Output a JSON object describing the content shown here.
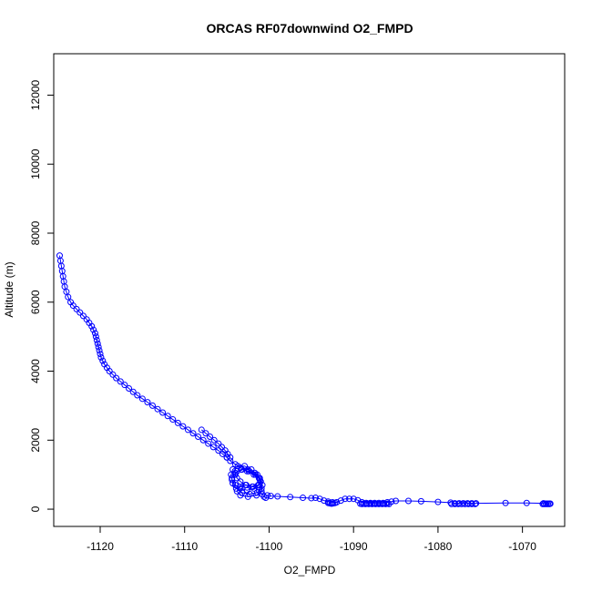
{
  "chart_data": {
    "type": "scatter",
    "title": "ORCAS RF07downwind O2_FMPD",
    "xlabel": "O2_FMPD",
    "ylabel": "Altitude (m)",
    "xlim": [
      -1125.5,
      -1065.0
    ],
    "ylim": [
      -500,
      13200
    ],
    "xticks": [
      -1120,
      -1110,
      -1100,
      -1090,
      -1080,
      -1070
    ],
    "xtick_labels": [
      "-1120",
      "-1110",
      "-1100",
      "-1090",
      "-1080",
      "-1070"
    ],
    "yticks": [
      0,
      2000,
      4000,
      6000,
      8000,
      10000,
      12000
    ],
    "ytick_labels": [
      "0",
      "2000",
      "4000",
      "6000",
      "8000",
      "10000",
      "12000"
    ],
    "grid": false,
    "series_color": "#0000ff",
    "marker": "open-circle",
    "connected_line": true,
    "series": [
      {
        "profile_descent": [
          [
            -1124.8,
            7350
          ],
          [
            -1124.7,
            7200
          ],
          [
            -1124.6,
            7050
          ],
          [
            -1124.5,
            6900
          ],
          [
            -1124.4,
            6750
          ],
          [
            -1124.3,
            6600
          ],
          [
            -1124.2,
            6450
          ],
          [
            -1124.0,
            6300
          ],
          [
            -1123.8,
            6150
          ],
          [
            -1123.5,
            6000
          ],
          [
            -1123.2,
            5900
          ],
          [
            -1122.8,
            5800
          ],
          [
            -1122.4,
            5700
          ],
          [
            -1122.0,
            5600
          ],
          [
            -1121.6,
            5500
          ],
          [
            -1121.3,
            5400
          ],
          [
            -1121.0,
            5300
          ],
          [
            -1120.8,
            5200
          ],
          [
            -1120.6,
            5100
          ],
          [
            -1120.5,
            5000
          ],
          [
            -1120.4,
            4900
          ],
          [
            -1120.3,
            4800
          ],
          [
            -1120.2,
            4700
          ],
          [
            -1120.1,
            4600
          ],
          [
            -1120.0,
            4500
          ],
          [
            -1119.9,
            4400
          ],
          [
            -1119.7,
            4300
          ],
          [
            -1119.5,
            4200
          ],
          [
            -1119.2,
            4100
          ],
          [
            -1118.9,
            4000
          ],
          [
            -1118.5,
            3900
          ],
          [
            -1118.1,
            3800
          ],
          [
            -1117.6,
            3700
          ],
          [
            -1117.1,
            3600
          ],
          [
            -1116.6,
            3500
          ],
          [
            -1116.1,
            3400
          ],
          [
            -1115.6,
            3300
          ],
          [
            -1115.0,
            3200
          ],
          [
            -1114.4,
            3100
          ],
          [
            -1113.8,
            3000
          ],
          [
            -1113.2,
            2900
          ],
          [
            -1112.6,
            2800
          ],
          [
            -1112.0,
            2700
          ],
          [
            -1111.4,
            2600
          ],
          [
            -1110.8,
            2500
          ],
          [
            -1110.2,
            2400
          ],
          [
            -1109.6,
            2300
          ],
          [
            -1109.0,
            2200
          ],
          [
            -1108.4,
            2100
          ],
          [
            -1107.8,
            2000
          ],
          [
            -1107.2,
            1900
          ],
          [
            -1106.6,
            1800
          ],
          [
            -1106.0,
            1700
          ],
          [
            -1105.5,
            1600
          ],
          [
            -1105.0,
            1500
          ]
        ],
        "profile_ascent": [
          [
            -1108.0,
            2300
          ],
          [
            -1107.5,
            2200
          ],
          [
            -1107.0,
            2100
          ],
          [
            -1106.5,
            2000
          ],
          [
            -1106.0,
            1900
          ],
          [
            -1105.6,
            1800
          ],
          [
            -1105.2,
            1700
          ],
          [
            -1104.9,
            1600
          ],
          [
            -1104.6,
            1500
          ]
        ],
        "spiral_cluster": [
          [
            -1105.0,
            1500
          ],
          [
            -1104.6,
            1400
          ],
          [
            -1104.0,
            1300
          ],
          [
            -1103.4,
            1200
          ],
          [
            -1102.6,
            1100
          ],
          [
            -1101.8,
            1000
          ],
          [
            -1101.2,
            900
          ],
          [
            -1101.0,
            800
          ],
          [
            -1101.3,
            700
          ],
          [
            -1102.0,
            650
          ],
          [
            -1102.8,
            700
          ],
          [
            -1103.4,
            800
          ],
          [
            -1103.8,
            900
          ],
          [
            -1104.0,
            1000
          ],
          [
            -1103.8,
            1100
          ],
          [
            -1103.2,
            1150
          ],
          [
            -1102.4,
            1100
          ],
          [
            -1101.6,
            1000
          ],
          [
            -1101.1,
            850
          ],
          [
            -1101.2,
            700
          ],
          [
            -1101.8,
            600
          ],
          [
            -1102.6,
            550
          ],
          [
            -1103.4,
            600
          ],
          [
            -1104.0,
            700
          ],
          [
            -1104.4,
            850
          ],
          [
            -1104.5,
            1000
          ],
          [
            -1104.3,
            1150
          ],
          [
            -1103.7,
            1250
          ],
          [
            -1102.9,
            1250
          ],
          [
            -1102.1,
            1150
          ],
          [
            -1101.4,
            1000
          ],
          [
            -1101.0,
            800
          ],
          [
            -1100.9,
            600
          ],
          [
            -1101.4,
            480
          ],
          [
            -1102.3,
            440
          ],
          [
            -1103.2,
            480
          ],
          [
            -1103.9,
            600
          ],
          [
            -1104.3,
            750
          ],
          [
            -1104.4,
            900
          ],
          [
            -1104.0,
            1050
          ],
          [
            -1103.3,
            1150
          ],
          [
            -1102.5,
            1150
          ],
          [
            -1101.7,
            1050
          ],
          [
            -1101.1,
            900
          ],
          [
            -1100.8,
            700
          ],
          [
            -1100.9,
            520
          ],
          [
            -1101.5,
            400
          ],
          [
            -1102.5,
            360
          ],
          [
            -1103.4,
            400
          ],
          [
            -1103.8,
            520
          ],
          [
            -1103.5,
            640
          ],
          [
            -1102.7,
            700
          ],
          [
            -1101.9,
            650
          ],
          [
            -1101.2,
            550
          ],
          [
            -1100.8,
            430
          ],
          [
            -1100.6,
            360
          ],
          [
            -1100.4,
            330
          ]
        ],
        "boundary_layer": [
          [
            -1100.2,
            400
          ],
          [
            -1099.8,
            380
          ],
          [
            -1099.0,
            370
          ],
          [
            -1097.5,
            350
          ],
          [
            -1096.0,
            330
          ],
          [
            -1095.0,
            320
          ],
          [
            -1094.5,
            330
          ],
          [
            -1094.0,
            300
          ],
          [
            -1093.5,
            250
          ],
          [
            -1093.0,
            220
          ],
          [
            -1092.5,
            200
          ],
          [
            -1092.0,
            200
          ],
          [
            -1091.5,
            250
          ],
          [
            -1091.0,
            300
          ],
          [
            -1090.5,
            300
          ],
          [
            -1090.0,
            300
          ],
          [
            -1089.5,
            260
          ],
          [
            -1089.0,
            200
          ],
          [
            -1088.5,
            180
          ],
          [
            -1088.0,
            180
          ],
          [
            -1087.5,
            180
          ],
          [
            -1087.0,
            180
          ],
          [
            -1086.5,
            180
          ],
          [
            -1086.0,
            200
          ],
          [
            -1085.5,
            220
          ],
          [
            -1085.0,
            240
          ],
          [
            -1083.5,
            240
          ],
          [
            -1082.0,
            230
          ],
          [
            -1080.0,
            210
          ],
          [
            -1078.5,
            190
          ],
          [
            -1078.0,
            170
          ],
          [
            -1077.5,
            170
          ],
          [
            -1077.0,
            170
          ],
          [
            -1076.5,
            170
          ],
          [
            -1076.0,
            170
          ],
          [
            -1075.5,
            170
          ],
          [
            -1072.0,
            180
          ],
          [
            -1069.5,
            180
          ],
          [
            -1067.5,
            170
          ],
          [
            -1067.2,
            160
          ],
          [
            -1067.0,
            160
          ],
          [
            -1066.8,
            160
          ],
          [
            -1066.7,
            160
          ]
        ],
        "surface_cluster": [
          [
            -1093.0,
            180
          ],
          [
            -1092.8,
            170
          ],
          [
            -1092.6,
            160
          ],
          [
            -1092.4,
            170
          ],
          [
            -1092.2,
            180
          ],
          [
            -1089.2,
            160
          ],
          [
            -1089.0,
            150
          ],
          [
            -1088.8,
            160
          ],
          [
            -1088.6,
            150
          ],
          [
            -1088.4,
            160
          ],
          [
            -1088.2,
            150
          ],
          [
            -1088.0,
            160
          ],
          [
            -1087.8,
            150
          ],
          [
            -1087.6,
            160
          ],
          [
            -1087.4,
            150
          ],
          [
            -1087.2,
            160
          ],
          [
            -1087.0,
            150
          ],
          [
            -1086.8,
            160
          ],
          [
            -1086.6,
            150
          ],
          [
            -1086.4,
            160
          ],
          [
            -1086.2,
            150
          ],
          [
            -1086.0,
            160
          ],
          [
            -1085.8,
            150
          ],
          [
            -1078.4,
            150
          ],
          [
            -1078.0,
            150
          ],
          [
            -1077.6,
            150
          ],
          [
            -1077.2,
            150
          ],
          [
            -1076.8,
            150
          ],
          [
            -1076.4,
            150
          ],
          [
            -1076.0,
            150
          ],
          [
            -1075.6,
            150
          ],
          [
            -1067.6,
            150
          ],
          [
            -1067.4,
            150
          ],
          [
            -1067.2,
            150
          ],
          [
            -1067.0,
            150
          ],
          [
            -1066.8,
            150
          ]
        ]
      }
    ]
  }
}
